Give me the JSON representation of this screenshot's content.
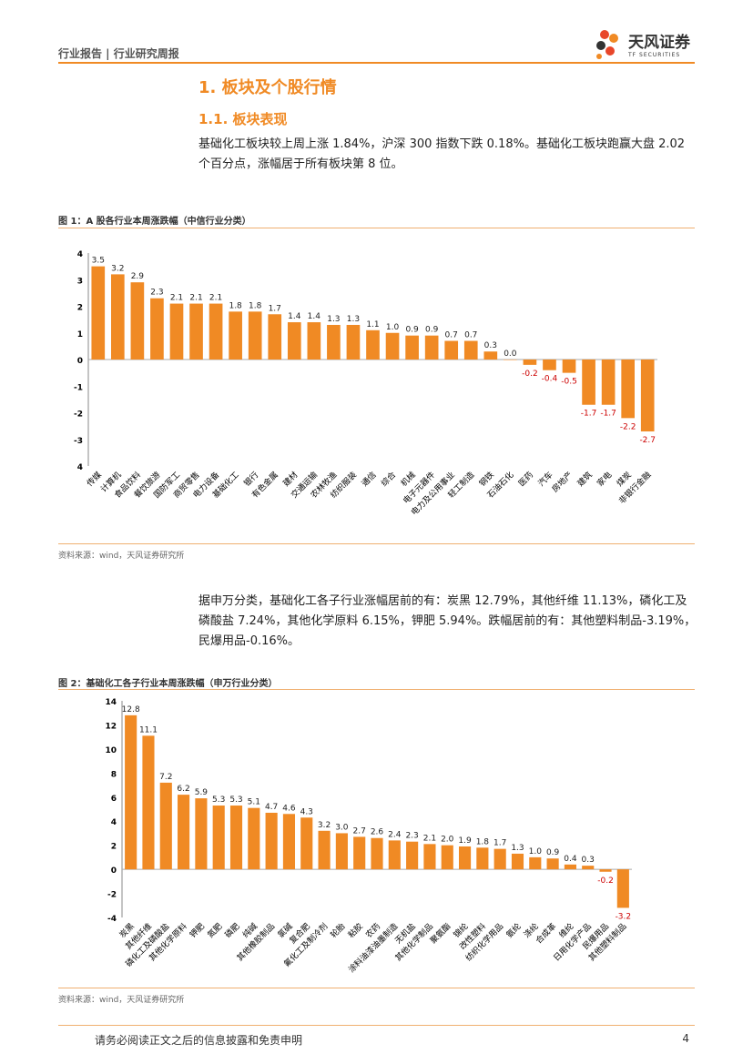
{
  "header": {
    "left": "行业报告 | 行业研究周报",
    "logo_cn": "天风证券",
    "logo_en": "TF SECURITIES"
  },
  "section": {
    "h1": "1. 板块及个股行情",
    "h2": "1.1. 板块表现",
    "p1": "基础化工板块较上周上涨 1.84%，沪深 300 指数下跌 0.18%。基础化工板块跑赢大盘 2.02 个百分点，涨幅居于所有板块第 8 位。",
    "p2": "据申万分类，基础化工各子行业涨幅居前的有：炭黑 12.79%，其他纤维 11.13%，磷化工及磷酸盐 7.24%，其他化学原料 6.15%，钾肥 5.94%。跌幅居前的有：其他塑料制品-3.19%，民爆用品-0.16%。"
  },
  "figures": [
    {
      "title": "图 1：A 股各行业本周涨跌幅（中信行业分类）",
      "source": "资料来源：wind，天风证券研究所"
    },
    {
      "title": "图 2：基础化工各子行业本周涨跌幅（申万行业分类）",
      "source": "资料来源：wind，天风证券研究所"
    }
  ],
  "chart_data": [
    {
      "type": "bar",
      "title": "A 股各行业本周涨跌幅（中信行业分类）",
      "ylim": [
        -4,
        4
      ],
      "ytick_step": 1,
      "bar_color": "#f08a24",
      "neg_label_color": "#cc0000",
      "categories": [
        "传媒",
        "计算机",
        "食品饮料",
        "餐饮旅游",
        "国防军工",
        "商贸零售",
        "电力设备",
        "基础化工",
        "银行",
        "有色金属",
        "建材",
        "交通运输",
        "农林牧渔",
        "纺织服装",
        "通信",
        "综合",
        "机械",
        "电子元器件",
        "电力及公用事业",
        "轻工制造",
        "钢铁",
        "石油石化",
        "医药",
        "汽车",
        "房地产",
        "建筑",
        "家电",
        "煤炭",
        "非银行金融"
      ],
      "values": [
        3.5,
        3.2,
        2.9,
        2.3,
        2.1,
        2.1,
        2.1,
        1.8,
        1.8,
        1.7,
        1.4,
        1.4,
        1.3,
        1.3,
        1.1,
        1.0,
        0.9,
        0.9,
        0.7,
        0.7,
        0.3,
        0.0,
        -0.2,
        -0.4,
        -0.5,
        -1.7,
        -1.7,
        -2.2,
        -2.7
      ]
    },
    {
      "type": "bar",
      "title": "基础化工各子行业本周涨跌幅（申万行业分类）",
      "ylim": [
        -4,
        14
      ],
      "ytick_step": 2,
      "bar_color": "#f08a24",
      "neg_label_color": "#cc0000",
      "categories": [
        "炭黑",
        "其他纤维",
        "磷化工及磷酸盐",
        "其他化学原料",
        "钾肥",
        "氮肥",
        "磷肥",
        "纯碱",
        "其他橡胶制品",
        "氯碱",
        "复合肥",
        "氟化工及制冷剂",
        "轮胎",
        "粘胶",
        "农药",
        "涂料油漆油墨制造",
        "无机盐",
        "其他化学制品",
        "聚氨酯",
        "锦纶",
        "改性塑料",
        "纺织化学用品",
        "氨纶",
        "涤纶",
        "合成革",
        "维纶",
        "日用化学产品",
        "民爆用品",
        "其他塑料制品"
      ],
      "values": [
        12.8,
        11.1,
        7.2,
        6.2,
        5.9,
        5.3,
        5.3,
        5.1,
        4.7,
        4.6,
        4.3,
        3.2,
        3.0,
        2.7,
        2.6,
        2.4,
        2.3,
        2.1,
        2.0,
        1.9,
        1.8,
        1.7,
        1.3,
        1.0,
        0.9,
        0.4,
        0.3,
        -0.2,
        -3.2
      ]
    }
  ],
  "footer": {
    "disclaimer": "请务必阅读正文之后的信息披露和免责申明",
    "page": "4"
  }
}
